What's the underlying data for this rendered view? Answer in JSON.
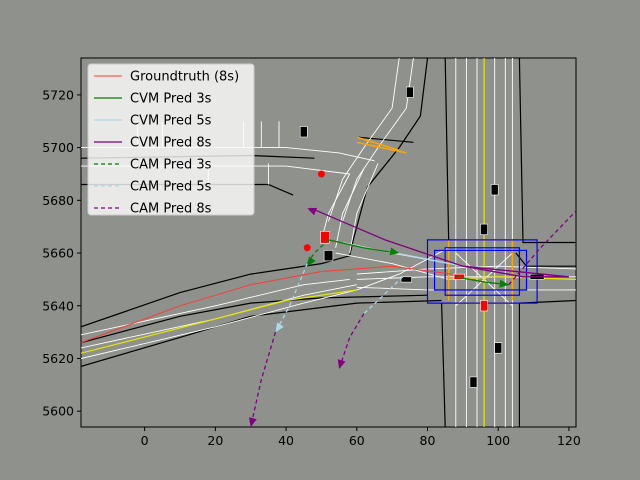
{
  "chart_data": {
    "type": "line",
    "xlim": [
      -18,
      122
    ],
    "ylim": [
      5594,
      5734
    ],
    "xticks": [
      0,
      20,
      40,
      60,
      80,
      100,
      120
    ],
    "yticks": [
      5600,
      5620,
      5640,
      5660,
      5680,
      5700,
      5720
    ],
    "grid": false,
    "legend_position": "top-left",
    "colors": {
      "background": "#8f918d",
      "groundtruth": "#ff3b30",
      "cvm_3s": "#008000",
      "cvm_5s": "#add8e6",
      "cvm_8s": "#800080",
      "cam_3s": "#008000",
      "cam_5s": "#add8e6",
      "cam_8s": "#800080",
      "road_edge": "#000000",
      "lane_line": "#ffffff",
      "center_line": "#e6e600",
      "crosswalk": "#ffa500",
      "box": "#0000ff",
      "vehicle": "#000000",
      "target": "#ff0000"
    },
    "legend": [
      {
        "label": "Groundtruth (8s)",
        "color": "#ff3b30",
        "dashed": false,
        "width": 1
      },
      {
        "label": "CVM Pred 3s",
        "color": "#008000",
        "dashed": false,
        "width": 1.3
      },
      {
        "label": "CVM Pred 5s",
        "color": "#add8e6",
        "dashed": false,
        "width": 1.3
      },
      {
        "label": "CVM Pred 8s",
        "color": "#800080",
        "dashed": false,
        "width": 1.3
      },
      {
        "label": "CAM Pred 3s",
        "color": "#008000",
        "dashed": true,
        "width": 1.3
      },
      {
        "label": "CAM Pred 5s",
        "color": "#add8e6",
        "dashed": true,
        "width": 1.3
      },
      {
        "label": "CAM Pred 8s",
        "color": "#800080",
        "dashed": true,
        "width": 1.3
      }
    ],
    "map": {
      "road_edges": [
        [
          [
            -18,
            5632
          ],
          [
            10,
            5645
          ],
          [
            30,
            5652
          ],
          [
            50,
            5656
          ],
          [
            58,
            5659
          ],
          [
            59,
            5665
          ],
          [
            63,
            5685
          ],
          [
            72,
            5700
          ],
          [
            78,
            5712
          ],
          [
            80,
            5734
          ]
        ],
        [
          [
            -18,
            5626
          ],
          [
            10,
            5636
          ],
          [
            30,
            5641
          ],
          [
            50,
            5643
          ],
          [
            80,
            5644
          ]
        ],
        [
          [
            -18,
            5617
          ],
          [
            10,
            5628
          ],
          [
            30,
            5636
          ],
          [
            60,
            5641
          ],
          [
            84,
            5642
          ]
        ],
        [
          [
            84,
            5641
          ],
          [
            85,
            5594
          ]
        ],
        [
          [
            106,
            5594
          ],
          [
            106,
            5641
          ],
          [
            122,
            5642
          ]
        ],
        [
          [
            105,
            5660
          ],
          [
            108,
            5655
          ],
          [
            122,
            5655
          ]
        ],
        [
          [
            85,
            5734
          ],
          [
            86,
            5664
          ]
        ],
        [
          [
            106,
            5734
          ],
          [
            107,
            5664
          ],
          [
            122,
            5664
          ]
        ],
        [
          [
            -18,
            5696
          ],
          [
            30,
            5697
          ],
          [
            48,
            5696
          ]
        ],
        [
          [
            -18,
            5686
          ],
          [
            35,
            5686
          ],
          [
            42,
            5682
          ]
        ],
        [
          [
            60,
            5704
          ],
          [
            76,
            5702
          ]
        ]
      ],
      "lane_lines": [
        [
          [
            -18,
            5629
          ],
          [
            20,
            5640
          ],
          [
            45,
            5648
          ],
          [
            58,
            5650
          ]
        ],
        [
          [
            -18,
            5624
          ],
          [
            20,
            5635
          ],
          [
            45,
            5644
          ],
          [
            60,
            5648
          ]
        ],
        [
          [
            -18,
            5620
          ],
          [
            20,
            5632
          ],
          [
            45,
            5641
          ],
          [
            60,
            5646
          ]
        ],
        [
          [
            60,
            5652
          ],
          [
            80,
            5654
          ],
          [
            100,
            5655
          ],
          [
            122,
            5654
          ]
        ],
        [
          [
            60,
            5650
          ],
          [
            80,
            5651
          ],
          [
            100,
            5651
          ],
          [
            122,
            5651
          ]
        ],
        [
          [
            60,
            5647
          ],
          [
            80,
            5646
          ],
          [
            100,
            5646
          ],
          [
            122,
            5646
          ]
        ],
        [
          [
            88,
            5594
          ],
          [
            88,
            5734
          ]
        ],
        [
          [
            91,
            5594
          ],
          [
            91,
            5734
          ]
        ],
        [
          [
            94,
            5594
          ],
          [
            94,
            5734
          ]
        ],
        [
          [
            99,
            5594
          ],
          [
            99,
            5734
          ]
        ],
        [
          [
            102,
            5594
          ],
          [
            102,
            5734
          ]
        ],
        [
          [
            104,
            5594
          ],
          [
            104,
            5734
          ]
        ],
        [
          [
            -18,
            5700
          ],
          [
            40,
            5700
          ],
          [
            55,
            5698
          ],
          [
            65,
            5695
          ]
        ],
        [
          [
            -18,
            5693
          ],
          [
            40,
            5693
          ],
          [
            58,
            5690
          ]
        ],
        [
          [
            58,
            5690
          ],
          [
            52,
            5675
          ],
          [
            50,
            5665
          ]
        ],
        [
          [
            62,
            5692
          ],
          [
            56,
            5675
          ],
          [
            54,
            5662
          ]
        ],
        [
          [
            66,
            5694
          ],
          [
            60,
            5675
          ],
          [
            58,
            5660
          ]
        ],
        [
          [
            72,
            5734
          ],
          [
            70,
            5715
          ],
          [
            62,
            5700
          ],
          [
            56,
            5688
          ],
          [
            52,
            5672
          ]
        ],
        [
          [
            76,
            5734
          ],
          [
            74,
            5715
          ],
          [
            66,
            5700
          ],
          [
            60,
            5688
          ],
          [
            56,
            5672
          ]
        ],
        [
          [
            54,
            5660
          ],
          [
            70,
            5656
          ],
          [
            86,
            5650
          ]
        ],
        [
          [
            56,
            5664
          ],
          [
            70,
            5660
          ],
          [
            86,
            5656
          ]
        ],
        [
          [
            60,
            5646
          ],
          [
            72,
            5652
          ],
          [
            86,
            5662
          ]
        ],
        [
          [
            88,
            5660
          ],
          [
            96,
            5650
          ],
          [
            104,
            5640
          ]
        ],
        [
          [
            88,
            5640
          ],
          [
            96,
            5650
          ],
          [
            104,
            5660
          ]
        ],
        [
          [
            -2,
            5700
          ],
          [
            -2,
            5710
          ]
        ],
        [
          [
            5,
            5700
          ],
          [
            5,
            5710
          ]
        ],
        [
          [
            28,
            5700
          ],
          [
            28,
            5710
          ]
        ],
        [
          [
            33,
            5700
          ],
          [
            33,
            5710
          ]
        ],
        [
          [
            38,
            5700
          ],
          [
            38,
            5710
          ]
        ],
        [
          [
            18,
            5686
          ],
          [
            18,
            5694
          ]
        ],
        [
          [
            35,
            5686
          ],
          [
            35,
            5694
          ]
        ]
      ],
      "center_lines": [
        [
          [
            -18,
            5622
          ],
          [
            20,
            5635
          ],
          [
            40,
            5642
          ],
          [
            60,
            5646
          ]
        ],
        [
          [
            86,
            5650
          ],
          [
            100,
            5651
          ],
          [
            122,
            5650
          ]
        ],
        [
          [
            96,
            5594
          ],
          [
            96,
            5734
          ]
        ]
      ],
      "crosswalks": [
        [
          [
            60,
            5704
          ],
          [
            72,
            5699
          ]
        ],
        [
          [
            60,
            5702
          ],
          [
            74,
            5698
          ]
        ],
        [
          [
            86,
            5642
          ],
          [
            86,
            5665
          ]
        ],
        [
          [
            104,
            5642
          ],
          [
            104,
            5665
          ]
        ],
        [
          [
            87,
            5665
          ],
          [
            104,
            5665
          ]
        ],
        [
          [
            87,
            5641
          ],
          [
            104,
            5641
          ]
        ]
      ],
      "boxes": [
        [
          80,
          5641,
          111,
          5665
        ],
        [
          85,
          5644,
          106,
          5662
        ],
        [
          82,
          5646,
          108,
          5661
        ]
      ],
      "vehicles": [
        [
          75,
          5721,
          2,
          4
        ],
        [
          45,
          5706,
          2,
          4
        ],
        [
          99,
          5684,
          2,
          4
        ],
        [
          96,
          5669,
          2,
          4
        ],
        [
          52,
          5659,
          2.5,
          4
        ],
        [
          111,
          5651,
          4,
          2
        ],
        [
          74,
          5650,
          3,
          2
        ],
        [
          100,
          5624,
          2,
          4
        ],
        [
          93,
          5611,
          2,
          4
        ]
      ],
      "target_vehicles": [
        [
          51,
          5666,
          2.5,
          4.5
        ],
        [
          96,
          5640,
          2,
          4
        ],
        [
          89,
          5651,
          3,
          2
        ]
      ],
      "target_points": [
        [
          50,
          5690
        ],
        [
          46,
          5662
        ]
      ]
    },
    "series": [
      {
        "id": "groundtruth",
        "color": "#ff3b30",
        "dashed": false,
        "x": [
          -18,
          10,
          30,
          50,
          70,
          87
        ],
        "y": [
          5626,
          5640,
          5648,
          5653,
          5655,
          5652
        ]
      },
      {
        "id": "cvm_3s",
        "color": "#008000",
        "dashed": false,
        "x": [
          52,
          62,
          71
        ],
        "y": [
          5665,
          5662,
          5660
        ]
      },
      {
        "id": "cvm_5s",
        "color": "#add8e6",
        "dashed": false,
        "x": [
          71,
          90
        ],
        "y": [
          5660,
          5655
        ]
      },
      {
        "id": "cvm_8s",
        "color": "#800080",
        "dashed": false,
        "x": [
          90,
          107,
          120,
          90,
          68,
          47
        ],
        "y": [
          5655,
          5651,
          5651,
          5655,
          5665,
          5677
        ]
      },
      {
        "id": "cam_3s",
        "color": "#008000",
        "dashed": true,
        "x": [
          52,
          48,
          46
        ],
        "y": [
          5665,
          5660,
          5656
        ]
      },
      {
        "id": "cam_5s",
        "color": "#add8e6",
        "dashed": true,
        "x": [
          46,
          41,
          37
        ],
        "y": [
          5656,
          5640,
          5630
        ]
      },
      {
        "id": "cam_8s",
        "color": "#800080",
        "dashed": true,
        "x": [
          37,
          33,
          30
        ],
        "y": [
          5630,
          5612,
          5594
        ]
      },
      {
        "id": "cvm_3s_b",
        "color": "#008000",
        "dashed": false,
        "x": [
          88,
          96,
          103
        ],
        "y": [
          5651,
          5649,
          5648
        ]
      },
      {
        "id": "cam_8s_b",
        "color": "#800080",
        "dashed": true,
        "x": [
          103,
          112,
          122
        ],
        "y": [
          5648,
          5662,
          5676
        ]
      },
      {
        "id": "cam_5s_b",
        "color": "#add8e6",
        "dashed": true,
        "x": [
          73,
          66,
          62
        ],
        "y": [
          5651,
          5642,
          5637
        ]
      },
      {
        "id": "cam_8s_c",
        "color": "#800080",
        "dashed": true,
        "x": [
          62,
          58,
          55
        ],
        "y": [
          5637,
          5628,
          5616
        ]
      }
    ],
    "arrows": [
      {
        "color": "#800080",
        "x": [
          68,
          46
        ],
        "y": [
          5665,
          5677
        ]
      },
      {
        "color": "#800080",
        "x": [
          33,
          30
        ],
        "y": [
          5610,
          5594
        ]
      },
      {
        "color": "#800080",
        "x": [
          57,
          55
        ],
        "y": [
          5625,
          5616
        ]
      },
      {
        "color": "#008000",
        "x": [
          64,
          72
        ],
        "y": [
          5662,
          5660
        ]
      },
      {
        "color": "#008000",
        "x": [
          48,
          46
        ],
        "y": [
          5659,
          5655
        ]
      },
      {
        "color": "#008000",
        "x": [
          96,
          103
        ],
        "y": [
          5649,
          5648
        ]
      },
      {
        "color": "#add8e6",
        "x": [
          40,
          37
        ],
        "y": [
          5636,
          5630
        ]
      }
    ]
  }
}
